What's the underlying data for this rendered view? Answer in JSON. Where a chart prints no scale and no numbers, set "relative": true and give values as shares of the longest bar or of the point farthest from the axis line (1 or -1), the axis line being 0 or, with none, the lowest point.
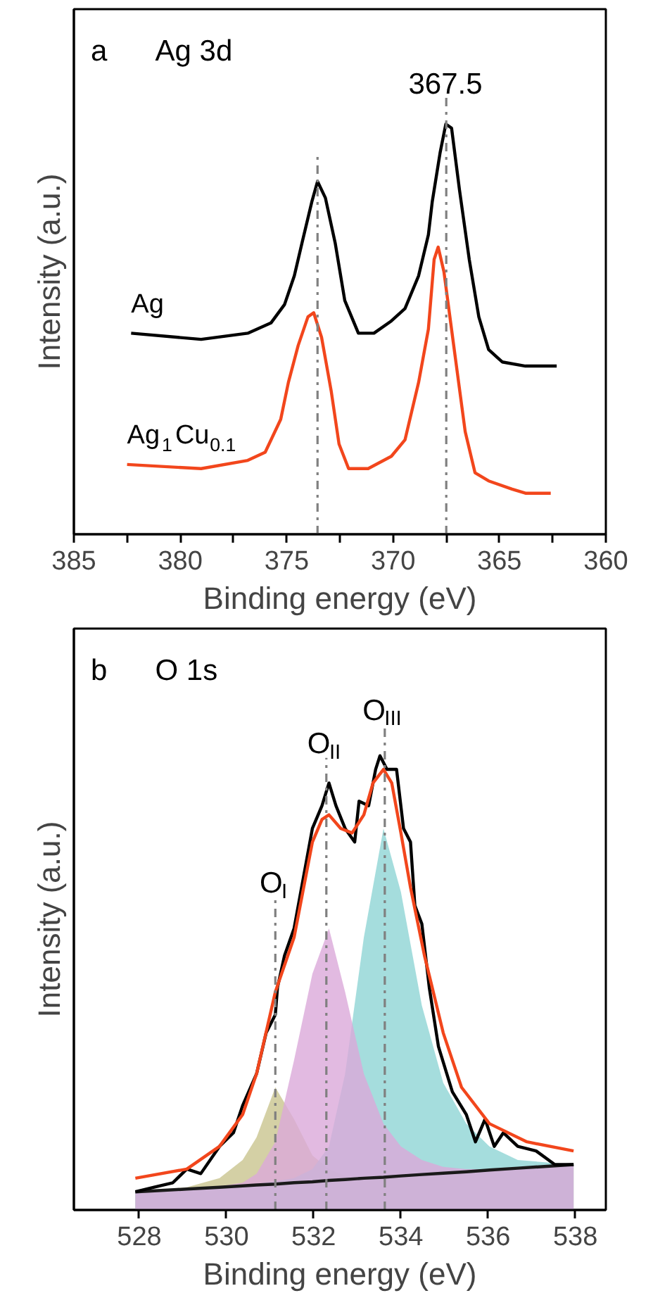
{
  "chart_data": [
    {
      "type": "line",
      "xlabel": "Binding energy (eV)",
      "ylabel": "Intensity (a.u.)",
      "relative": true,
      "xlim": [
        385,
        360
      ],
      "xticks": [
        385,
        {
          "value": 382.5,
          "label": null
        },
        380,
        {
          "value": 377.5,
          "label": null
        },
        375,
        {
          "value": 372.5,
          "label": null
        },
        370,
        {
          "value": 367.5,
          "label": null
        },
        365,
        {
          "value": 362.5,
          "label": null
        },
        360
      ],
      "series": [
        {
          "name": "Ag",
          "color": "#000000",
          "x": [
            382.31,
            379.02,
            376.83,
            375.74,
            375.1,
            374.64,
            374.28,
            373.82,
            373.55,
            373.18,
            372.72,
            372.27,
            371.63,
            370.9,
            370.08,
            369.44,
            368.8,
            368.34,
            368.16,
            367.79,
            367.52,
            367.25,
            366.88,
            366.42,
            365.97,
            365.51,
            364.87,
            363.78,
            362.31
          ],
          "values": [
            0.49,
            0.475,
            0.49,
            0.515,
            0.56,
            0.63,
            0.71,
            0.81,
            0.86,
            0.82,
            0.71,
            0.57,
            0.49,
            0.49,
            0.52,
            0.55,
            0.63,
            0.73,
            0.81,
            0.93,
            1.0,
            0.99,
            0.84,
            0.67,
            0.53,
            0.45,
            0.42,
            0.41,
            0.41
          ]
        },
        {
          "name": "Ag$_{1}$Cu$_{0.1}$",
          "color": "#f2461c",
          "x": [
            382.5,
            379.02,
            376.83,
            376.01,
            375.28,
            374.92,
            374.46,
            374.0,
            373.73,
            373.36,
            372.91,
            372.54,
            372.09,
            371.17,
            370.08,
            369.44,
            368.8,
            368.34,
            368.07,
            367.88,
            367.61,
            367.15,
            366.61,
            366.15,
            365.51,
            364.41,
            363.78,
            362.59
          ],
          "values": [
            0.17,
            0.16,
            0.18,
            0.2,
            0.28,
            0.37,
            0.46,
            0.53,
            0.54,
            0.48,
            0.35,
            0.22,
            0.16,
            0.16,
            0.19,
            0.23,
            0.37,
            0.5,
            0.67,
            0.7,
            0.64,
            0.46,
            0.25,
            0.15,
            0.13,
            0.11,
            0.1,
            0.1
          ]
        }
      ],
      "ref_lines": [
        {
          "axis": "x",
          "value": 373.55,
          "color": "#808080",
          "line_style": "dashed"
        },
        {
          "axis": "x",
          "value": 367.5,
          "label": "367.5",
          "color": "#808080",
          "line_style": "dashed"
        }
      ],
      "annotations": [
        "a",
        "Ag 3d"
      ]
    },
    {
      "type": "line",
      "xlabel": "Binding energy (eV)",
      "ylabel": "Intensity (a.u.)",
      "relative": true,
      "xlim": [
        526.5,
        538.7
      ],
      "xticks": [
        528,
        530,
        532,
        534,
        536,
        538
      ],
      "series": [
        {
          "type": "area",
          "color": "#c9c48f",
          "x": [
            527.91,
            529.09,
            529.84,
            530.37,
            530.69,
            531.12,
            531.55,
            531.97,
            532.35,
            532.72,
            533.15,
            533.6,
            534.0,
            534.48,
            534.97,
            535.5,
            536.03,
            536.68,
            537.96
          ],
          "values": [
            0.04,
            0.05,
            0.07,
            0.11,
            0.16,
            0.27,
            0.2,
            0.12,
            0.09,
            0.075,
            0.072,
            0.073,
            0.076,
            0.079,
            0.082,
            0.085,
            0.089,
            0.093,
            0.1
          ]
        },
        {
          "type": "area",
          "color": "#8fd4d4",
          "x": [
            527.91,
            529.09,
            529.84,
            530.37,
            530.69,
            531.12,
            531.55,
            531.97,
            532.35,
            532.72,
            533.15,
            533.6,
            534.0,
            534.48,
            534.97,
            535.5,
            536.03,
            536.68,
            537.96
          ],
          "values": [
            0.04,
            0.047,
            0.052,
            0.055,
            0.058,
            0.063,
            0.07,
            0.09,
            0.14,
            0.3,
            0.6,
            0.84,
            0.7,
            0.45,
            0.28,
            0.19,
            0.14,
            0.11,
            0.1
          ]
        },
        {
          "type": "area",
          "color": "#dba9d9",
          "x": [
            527.91,
            529.09,
            529.84,
            530.37,
            530.69,
            531.12,
            531.55,
            531.97,
            532.35,
            532.72,
            533.15,
            533.6,
            534.0,
            534.48,
            534.97,
            535.5,
            536.03,
            536.68,
            537.96
          ],
          "values": [
            0.04,
            0.047,
            0.052,
            0.06,
            0.08,
            0.15,
            0.33,
            0.52,
            0.62,
            0.48,
            0.3,
            0.19,
            0.14,
            0.11,
            0.095,
            0.09,
            0.09,
            0.093,
            0.1
          ]
        },
        {
          "color": "#1a1a1a",
          "x": [
            527.91,
            529.09,
            529.84,
            530.37,
            530.69,
            531.12,
            531.55,
            531.97,
            532.35,
            532.72,
            533.15,
            533.6,
            534.0,
            534.48,
            534.97,
            535.5,
            536.03,
            536.68,
            537.96
          ],
          "values": [
            0.04,
            0.046,
            0.05,
            0.053,
            0.055,
            0.057,
            0.06,
            0.062,
            0.065,
            0.067,
            0.07,
            0.072,
            0.075,
            0.078,
            0.081,
            0.084,
            0.088,
            0.092,
            0.1
          ]
        },
        {
          "color": "#000000",
          "x": [
            527.91,
            528.34,
            528.77,
            529.09,
            529.41,
            529.84,
            530.16,
            530.37,
            530.69,
            530.91,
            531.12,
            531.17,
            531.33,
            531.55,
            531.76,
            531.97,
            532.19,
            532.35,
            532.51,
            532.72,
            532.94,
            533.04,
            533.26,
            533.42,
            533.52,
            533.68,
            533.9,
            534.06,
            534.22,
            534.32,
            534.48,
            534.65,
            534.86,
            535.18,
            535.5,
            535.71,
            535.93,
            536.14,
            536.35,
            536.68,
            537.1,
            537.53,
            537.96
          ],
          "values": [
            0.04,
            0.05,
            0.06,
            0.09,
            0.08,
            0.14,
            0.17,
            0.23,
            0.3,
            0.39,
            0.43,
            0.49,
            0.56,
            0.62,
            0.73,
            0.84,
            0.89,
            0.94,
            0.89,
            0.84,
            0.81,
            0.9,
            0.89,
            0.97,
            1.0,
            0.97,
            0.97,
            0.84,
            0.81,
            0.67,
            0.63,
            0.49,
            0.36,
            0.26,
            0.21,
            0.15,
            0.2,
            0.14,
            0.17,
            0.14,
            0.13,
            0.1,
            0.1
          ]
        },
        {
          "color": "#f2461c",
          "x": [
            527.91,
            529.09,
            529.84,
            530.37,
            530.69,
            531.12,
            531.55,
            531.97,
            532.19,
            532.35,
            532.62,
            532.88,
            533.15,
            533.36,
            533.6,
            533.79,
            534.0,
            534.22,
            534.54,
            534.97,
            535.39,
            536.03,
            536.89,
            537.96
          ],
          "values": [
            0.07,
            0.09,
            0.14,
            0.21,
            0.3,
            0.48,
            0.6,
            0.81,
            0.86,
            0.87,
            0.84,
            0.83,
            0.87,
            0.94,
            0.97,
            0.94,
            0.83,
            0.71,
            0.56,
            0.39,
            0.27,
            0.19,
            0.15,
            0.13
          ]
        }
      ],
      "ref_lines": [
        {
          "axis": "x",
          "value": 531.12,
          "label": "O$_{I}$",
          "color": "#808080",
          "line_style": "dashed"
        },
        {
          "axis": "x",
          "value": 532.29,
          "label": "O$_{II}$",
          "color": "#808080",
          "line_style": "dashed"
        },
        {
          "axis": "x",
          "value": 533.63,
          "label": "O$_{III}$",
          "color": "#808080",
          "line_style": "dashed"
        }
      ],
      "annotations": [
        "b",
        "O 1s"
      ]
    }
  ]
}
